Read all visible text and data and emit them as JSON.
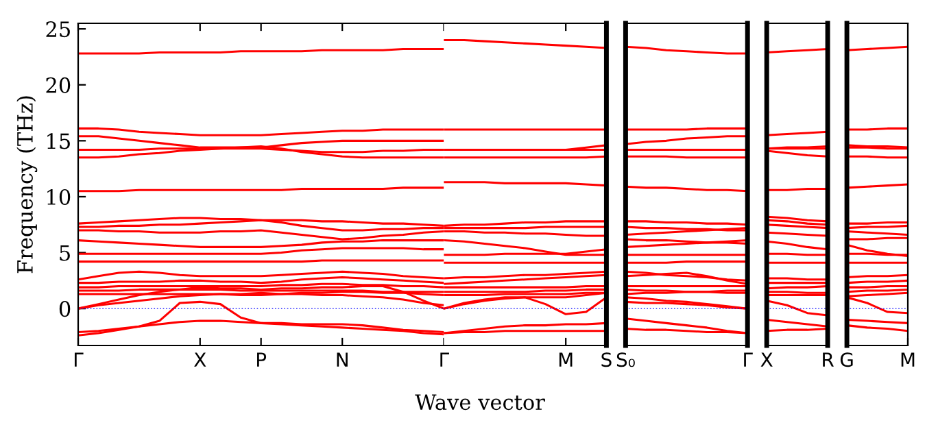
{
  "chart_data": [
    {
      "type": "line",
      "ylabel": "Frequency (THz)",
      "xlabel": "Wave vector",
      "categories": [
        "Γ",
        null,
        null,
        null,
        null,
        null,
        "X",
        null,
        null,
        "P",
        null,
        null,
        null,
        "N",
        null,
        null,
        null,
        null,
        "Γ"
      ],
      "ylim": [
        -3.3,
        25.5
      ],
      "yticks": [
        0,
        5,
        10,
        15,
        20,
        25
      ],
      "ref_lines": [
        {
          "axis": "y",
          "value": 0,
          "color": "#0000ff",
          "line_style": "dotted"
        }
      ],
      "series": [
        {
          "color": "#ff0000",
          "values": [
            22.8,
            22.8,
            22.8,
            22.8,
            22.9,
            22.9,
            22.9,
            22.9,
            23.0,
            23.0,
            23.0,
            23.0,
            23.1,
            23.1,
            23.1,
            23.1,
            23.2,
            23.2,
            23.2
          ]
        },
        {
          "color": "#ff0000",
          "values": [
            16.1,
            16.1,
            16.0,
            15.8,
            15.7,
            15.6,
            15.5,
            15.5,
            15.5,
            15.5,
            15.6,
            15.7,
            15.8,
            15.9,
            15.9,
            16.0,
            16.0,
            16.0,
            16.0
          ]
        },
        {
          "color": "#ff0000",
          "values": [
            15.4,
            15.4,
            15.2,
            15.0,
            14.8,
            14.6,
            14.4,
            14.4,
            14.4,
            14.4,
            14.6,
            14.8,
            14.9,
            15.0,
            15.0,
            15.0,
            15.0,
            15.0,
            15.0
          ]
        },
        {
          "color": "#ff0000",
          "values": [
            14.2,
            14.2,
            14.2,
            14.2,
            14.3,
            14.3,
            14.3,
            14.3,
            14.3,
            14.3,
            14.2,
            14.1,
            14.0,
            14.0,
            14.0,
            14.1,
            14.1,
            14.2,
            14.2
          ]
        },
        {
          "color": "#ff0000",
          "values": [
            13.5,
            13.5,
            13.6,
            13.8,
            13.9,
            14.1,
            14.2,
            14.3,
            14.4,
            14.5,
            14.3,
            14.0,
            13.8,
            13.6,
            13.5,
            13.5,
            13.5,
            13.5,
            13.5
          ]
        },
        {
          "color": "#ff0000",
          "values": [
            10.5,
            10.5,
            10.5,
            10.6,
            10.6,
            10.6,
            10.6,
            10.6,
            10.6,
            10.6,
            10.6,
            10.7,
            10.7,
            10.7,
            10.7,
            10.7,
            10.8,
            10.8,
            10.8
          ]
        },
        {
          "color": "#ff0000",
          "values": [
            7.6,
            7.7,
            7.8,
            7.9,
            8.0,
            8.1,
            8.1,
            8.0,
            8.0,
            7.9,
            7.9,
            7.9,
            7.8,
            7.8,
            7.7,
            7.6,
            7.6,
            7.5,
            7.4
          ]
        },
        {
          "color": "#ff0000",
          "values": [
            7.3,
            7.3,
            7.4,
            7.4,
            7.5,
            7.5,
            7.6,
            7.7,
            7.8,
            7.9,
            7.7,
            7.4,
            7.2,
            7.0,
            7.0,
            7.1,
            7.1,
            7.2,
            7.2
          ]
        },
        {
          "color": "#ff0000",
          "values": [
            7.0,
            7.0,
            6.9,
            6.9,
            6.8,
            6.8,
            6.8,
            6.9,
            6.9,
            7.0,
            6.8,
            6.6,
            6.4,
            6.2,
            6.3,
            6.5,
            6.6,
            6.8,
            6.9
          ]
        },
        {
          "color": "#ff0000",
          "values": [
            6.1,
            6.0,
            5.9,
            5.8,
            5.7,
            5.6,
            5.5,
            5.5,
            5.5,
            5.5,
            5.6,
            5.7,
            5.9,
            6.0,
            6.0,
            6.1,
            6.1,
            6.1,
            6.1
          ]
        },
        {
          "color": "#ff0000",
          "values": [
            4.9,
            4.9,
            4.9,
            4.9,
            4.9,
            4.9,
            4.9,
            4.9,
            4.9,
            4.9,
            5.0,
            5.2,
            5.3,
            5.4,
            5.4,
            5.4,
            5.4,
            5.3,
            5.3
          ]
        },
        {
          "color": "#ff0000",
          "values": [
            4.2,
            4.2,
            4.2,
            4.2,
            4.2,
            4.2,
            4.2,
            4.2,
            4.2,
            4.2,
            4.2,
            4.2,
            4.3,
            4.3,
            4.3,
            4.3,
            4.3,
            4.3,
            4.3
          ]
        },
        {
          "color": "#ff0000",
          "values": [
            2.6,
            2.9,
            3.2,
            3.3,
            3.2,
            3.0,
            2.9,
            2.9,
            2.9,
            2.9,
            3.0,
            3.1,
            3.2,
            3.3,
            3.2,
            3.1,
            2.9,
            2.8,
            2.7
          ]
        },
        {
          "color": "#ff0000",
          "values": [
            2.3,
            2.3,
            2.4,
            2.4,
            2.4,
            2.5,
            2.5,
            2.4,
            2.4,
            2.3,
            2.4,
            2.6,
            2.7,
            2.8,
            2.7,
            2.6,
            2.5,
            2.4,
            2.3
          ]
        },
        {
          "color": "#ff0000",
          "values": [
            1.9,
            1.9,
            2.0,
            2.0,
            2.0,
            2.0,
            2.0,
            2.0,
            2.0,
            2.0,
            2.1,
            2.1,
            2.2,
            2.2,
            2.1,
            2.1,
            2.0,
            2.0,
            1.9
          ]
        },
        {
          "color": "#ff0000",
          "values": [
            1.6,
            1.6,
            1.6,
            1.7,
            1.7,
            1.7,
            1.7,
            1.7,
            1.6,
            1.6,
            1.6,
            1.6,
            1.6,
            1.6,
            1.6,
            1.5,
            1.5,
            1.5,
            1.5
          ]
        },
        {
          "color": "#ff0000",
          "values": [
            1.3,
            1.3,
            1.3,
            1.3,
            1.3,
            1.3,
            1.3,
            1.3,
            1.2,
            1.2,
            1.3,
            1.4,
            1.4,
            1.5,
            1.5,
            1.4,
            1.4,
            1.3,
            1.2
          ]
        },
        {
          "color": "#ff0000",
          "values": [
            0.0,
            0.4,
            0.8,
            1.2,
            1.5,
            1.7,
            1.9,
            1.8,
            1.8,
            1.7,
            1.8,
            1.8,
            1.9,
            1.9,
            2.0,
            2.0,
            1.5,
            0.7,
            0.0
          ]
        },
        {
          "color": "#ff0000",
          "values": [
            0.0,
            0.3,
            0.5,
            0.7,
            0.9,
            1.1,
            1.2,
            1.3,
            1.3,
            1.4,
            1.3,
            1.3,
            1.2,
            1.2,
            1.1,
            1.0,
            0.8,
            0.5,
            0.3
          ]
        },
        {
          "color": "#ff0000",
          "values": [
            -2.4,
            -2.2,
            -1.9,
            -1.6,
            -1.1,
            0.5,
            0.6,
            0.4,
            -0.8,
            -1.3,
            -1.4,
            -1.5,
            -1.6,
            -1.7,
            -1.8,
            -1.9,
            -2.0,
            -2.2,
            -2.3
          ]
        },
        {
          "color": "#ff0000",
          "values": [
            -2.1,
            -2.0,
            -1.8,
            -1.6,
            -1.4,
            -1.2,
            -1.1,
            -1.1,
            -1.2,
            -1.3,
            -1.3,
            -1.4,
            -1.4,
            -1.4,
            -1.5,
            -1.7,
            -1.9,
            -2.0,
            -2.1
          ]
        }
      ]
    },
    {
      "type": "line",
      "categories": [
        null,
        null,
        null,
        null,
        null,
        null,
        "M",
        null,
        "S"
      ],
      "ylim": [
        -3.3,
        25.5
      ],
      "tick_labels": "x",
      "ref_lines": [
        {
          "axis": "y",
          "value": 0,
          "color": "#0000ff",
          "line_style": "dotted"
        }
      ],
      "series": [
        {
          "color": "#ff0000",
          "values": [
            24.0,
            24.0,
            23.9,
            23.8,
            23.7,
            23.6,
            23.5,
            23.4,
            23.3
          ]
        },
        {
          "color": "#ff0000",
          "values": [
            16.0,
            16.0,
            16.0,
            16.0,
            16.0,
            16.0,
            16.0,
            16.0,
            16.0
          ]
        },
        {
          "color": "#ff0000",
          "values": [
            14.2,
            14.2,
            14.2,
            14.2,
            14.2,
            14.2,
            14.2,
            14.4,
            14.6
          ]
        },
        {
          "color": "#ff0000",
          "values": [
            14.2,
            14.2,
            14.2,
            14.2,
            14.2,
            14.2,
            14.2,
            14.2,
            14.2
          ]
        },
        {
          "color": "#ff0000",
          "values": [
            13.5,
            13.5,
            13.5,
            13.5,
            13.5,
            13.5,
            13.5,
            13.5,
            13.6
          ]
        },
        {
          "color": "#ff0000",
          "values": [
            11.3,
            11.3,
            11.3,
            11.2,
            11.2,
            11.2,
            11.2,
            11.1,
            11.0
          ]
        },
        {
          "color": "#ff0000",
          "values": [
            7.4,
            7.5,
            7.5,
            7.6,
            7.7,
            7.7,
            7.8,
            7.8,
            7.8
          ]
        },
        {
          "color": "#ff0000",
          "values": [
            7.2,
            7.2,
            7.2,
            7.2,
            7.2,
            7.3,
            7.3,
            7.3,
            7.3
          ]
        },
        {
          "color": "#ff0000",
          "values": [
            6.9,
            6.9,
            6.8,
            6.8,
            6.7,
            6.7,
            6.6,
            6.5,
            6.5
          ]
        },
        {
          "color": "#ff0000",
          "values": [
            6.1,
            6.0,
            5.8,
            5.6,
            5.4,
            5.1,
            4.8,
            4.8,
            4.8
          ]
        },
        {
          "color": "#ff0000",
          "values": [
            4.8,
            4.8,
            4.8,
            4.9,
            4.9,
            4.9,
            4.9,
            5.1,
            5.3
          ]
        },
        {
          "color": "#ff0000",
          "values": [
            4.1,
            4.1,
            4.1,
            4.1,
            4.1,
            4.1,
            4.1,
            4.1,
            4.1
          ]
        },
        {
          "color": "#ff0000",
          "values": [
            2.7,
            2.8,
            2.8,
            2.9,
            3.0,
            3.0,
            3.1,
            3.2,
            3.3
          ]
        },
        {
          "color": "#ff0000",
          "values": [
            2.2,
            2.3,
            2.4,
            2.5,
            2.6,
            2.7,
            2.8,
            2.9,
            3.0
          ]
        },
        {
          "color": "#ff0000",
          "values": [
            1.9,
            1.9,
            1.9,
            1.9,
            1.9,
            1.9,
            1.9,
            2.0,
            2.0
          ]
        },
        {
          "color": "#ff0000",
          "values": [
            1.5,
            1.5,
            1.5,
            1.5,
            1.5,
            1.6,
            1.6,
            1.7,
            1.7
          ]
        },
        {
          "color": "#ff0000",
          "values": [
            1.2,
            1.2,
            1.2,
            1.3,
            1.3,
            1.3,
            1.3,
            1.4,
            1.4
          ]
        },
        {
          "color": "#ff0000",
          "values": [
            0.0,
            0.5,
            0.8,
            1.0,
            1.0,
            1.0,
            1.0,
            1.2,
            1.4
          ]
        },
        {
          "color": "#ff0000",
          "values": [
            0.0,
            0.4,
            0.7,
            0.9,
            1.0,
            0.4,
            -0.5,
            -0.3,
            1.0
          ]
        },
        {
          "color": "#ff0000",
          "values": [
            -2.2,
            -2.0,
            -1.8,
            -1.6,
            -1.5,
            -1.5,
            -1.4,
            -1.4,
            -1.3
          ]
        },
        {
          "color": "#ff0000",
          "values": [
            -2.2,
            -2.1,
            -2.1,
            -2.0,
            -2.0,
            -2.0,
            -2.0,
            -2.0,
            -2.0
          ]
        }
      ]
    },
    {
      "type": "line",
      "categories": [
        "S₀",
        null,
        null,
        null,
        null,
        null,
        "Γ"
      ],
      "ylim": [
        -3.3,
        25.5
      ],
      "tick_labels": "x",
      "ref_lines": [
        {
          "axis": "y",
          "value": 0,
          "color": "#0000ff",
          "line_style": "dotted"
        }
      ],
      "series": [
        {
          "color": "#ff0000",
          "values": [
            23.4,
            23.3,
            23.1,
            23.0,
            22.9,
            22.8,
            22.8
          ]
        },
        {
          "color": "#ff0000",
          "values": [
            16.0,
            16.0,
            16.0,
            16.0,
            16.1,
            16.1,
            16.1
          ]
        },
        {
          "color": "#ff0000",
          "values": [
            14.7,
            14.9,
            15.0,
            15.2,
            15.3,
            15.4,
            15.4
          ]
        },
        {
          "color": "#ff0000",
          "values": [
            14.2,
            14.2,
            14.2,
            14.2,
            14.2,
            14.2,
            14.2
          ]
        },
        {
          "color": "#ff0000",
          "values": [
            13.6,
            13.6,
            13.6,
            13.5,
            13.5,
            13.5,
            13.5
          ]
        },
        {
          "color": "#ff0000",
          "values": [
            10.9,
            10.8,
            10.8,
            10.7,
            10.6,
            10.6,
            10.5
          ]
        },
        {
          "color": "#ff0000",
          "values": [
            7.8,
            7.8,
            7.7,
            7.7,
            7.6,
            7.6,
            7.5
          ]
        },
        {
          "color": "#ff0000",
          "values": [
            7.3,
            7.2,
            7.2,
            7.1,
            7.1,
            7.0,
            7.0
          ]
        },
        {
          "color": "#ff0000",
          "values": [
            6.6,
            6.7,
            6.8,
            6.9,
            7.0,
            7.1,
            7.2
          ]
        },
        {
          "color": "#ff0000",
          "values": [
            6.2,
            6.1,
            6.1,
            6.0,
            5.9,
            5.9,
            5.8
          ]
        },
        {
          "color": "#ff0000",
          "values": [
            5.5,
            5.6,
            5.7,
            5.8,
            5.9,
            6.0,
            6.1
          ]
        },
        {
          "color": "#ff0000",
          "values": [
            4.8,
            4.8,
            4.8,
            4.8,
            4.8,
            4.8,
            4.8
          ]
        },
        {
          "color": "#ff0000",
          "values": [
            4.1,
            4.1,
            4.1,
            4.2,
            4.2,
            4.2,
            4.2
          ]
        },
        {
          "color": "#ff0000",
          "values": [
            3.3,
            3.2,
            3.0,
            2.9,
            2.8,
            2.6,
            2.5
          ]
        },
        {
          "color": "#ff0000",
          "values": [
            2.9,
            3.0,
            3.1,
            3.2,
            2.9,
            2.5,
            2.2
          ]
        },
        {
          "color": "#ff0000",
          "values": [
            2.0,
            2.0,
            2.0,
            2.0,
            2.0,
            2.0,
            2.0
          ]
        },
        {
          "color": "#ff0000",
          "values": [
            1.7,
            1.6,
            1.6,
            1.5,
            1.5,
            1.4,
            1.4
          ]
        },
        {
          "color": "#ff0000",
          "values": [
            1.3,
            1.4,
            1.4,
            1.5,
            1.5,
            1.6,
            1.6
          ]
        },
        {
          "color": "#ff0000",
          "values": [
            1.0,
            0.9,
            0.7,
            0.6,
            0.4,
            0.2,
            0.0
          ]
        },
        {
          "color": "#ff0000",
          "values": [
            0.6,
            0.5,
            0.5,
            0.4,
            0.3,
            0.1,
            0.0
          ]
        },
        {
          "color": "#ff0000",
          "values": [
            -0.9,
            -1.1,
            -1.3,
            -1.5,
            -1.7,
            -2.0,
            -2.2
          ]
        },
        {
          "color": "#ff0000",
          "values": [
            -1.8,
            -1.9,
            -1.9,
            -2.0,
            -2.1,
            -2.1,
            -2.2
          ]
        }
      ]
    },
    {
      "type": "line",
      "categories": [
        "X",
        null,
        null,
        "R"
      ],
      "ylim": [
        -3.3,
        25.5
      ],
      "tick_labels": "x",
      "ref_lines": [
        {
          "axis": "y",
          "value": 0,
          "color": "#0000ff",
          "line_style": "dotted"
        }
      ],
      "series": [
        {
          "color": "#ff0000",
          "values": [
            22.9,
            23.0,
            23.1,
            23.2
          ]
        },
        {
          "color": "#ff0000",
          "values": [
            15.5,
            15.6,
            15.7,
            15.8
          ]
        },
        {
          "color": "#ff0000",
          "values": [
            14.3,
            14.4,
            14.4,
            14.5
          ]
        },
        {
          "color": "#ff0000",
          "values": [
            14.3,
            14.3,
            14.3,
            14.3
          ]
        },
        {
          "color": "#ff0000",
          "values": [
            14.1,
            13.9,
            13.7,
            13.6
          ]
        },
        {
          "color": "#ff0000",
          "values": [
            10.6,
            10.6,
            10.7,
            10.7
          ]
        },
        {
          "color": "#ff0000",
          "values": [
            8.2,
            8.1,
            7.9,
            7.8
          ]
        },
        {
          "color": "#ff0000",
          "values": [
            7.9,
            7.8,
            7.6,
            7.5
          ]
        },
        {
          "color": "#ff0000",
          "values": [
            7.5,
            7.4,
            7.3,
            7.2
          ]
        },
        {
          "color": "#ff0000",
          "values": [
            6.8,
            6.7,
            6.6,
            6.5
          ]
        },
        {
          "color": "#ff0000",
          "values": [
            6.0,
            5.8,
            5.5,
            5.3
          ]
        },
        {
          "color": "#ff0000",
          "values": [
            4.9,
            4.9,
            4.8,
            4.8
          ]
        },
        {
          "color": "#ff0000",
          "values": [
            4.1,
            4.1,
            4.1,
            4.1
          ]
        },
        {
          "color": "#ff0000",
          "values": [
            2.7,
            2.7,
            2.6,
            2.6
          ]
        },
        {
          "color": "#ff0000",
          "values": [
            2.3,
            2.3,
            2.3,
            2.3
          ]
        },
        {
          "color": "#ff0000",
          "values": [
            1.8,
            1.9,
            1.9,
            2.0
          ]
        },
        {
          "color": "#ff0000",
          "values": [
            1.5,
            1.5,
            1.4,
            1.4
          ]
        },
        {
          "color": "#ff0000",
          "values": [
            1.2,
            1.2,
            1.2,
            1.2
          ]
        },
        {
          "color": "#ff0000",
          "values": [
            0.7,
            0.3,
            -0.4,
            -0.6
          ]
        },
        {
          "color": "#ff0000",
          "values": [
            -1.0,
            -1.2,
            -1.4,
            -1.6
          ]
        },
        {
          "color": "#ff0000",
          "values": [
            -2.0,
            -1.9,
            -1.9,
            -1.8
          ]
        }
      ]
    },
    {
      "type": "line",
      "categories": [
        "G",
        null,
        null,
        "M"
      ],
      "ylim": [
        -3.3,
        25.5
      ],
      "tick_labels": "x",
      "ref_lines": [
        {
          "axis": "y",
          "value": 0,
          "color": "#0000ff",
          "line_style": "dotted"
        }
      ],
      "series": [
        {
          "color": "#ff0000",
          "values": [
            23.1,
            23.2,
            23.3,
            23.4
          ]
        },
        {
          "color": "#ff0000",
          "values": [
            16.0,
            16.0,
            16.1,
            16.1
          ]
        },
        {
          "color": "#ff0000",
          "values": [
            14.6,
            14.5,
            14.5,
            14.4
          ]
        },
        {
          "color": "#ff0000",
          "values": [
            14.4,
            14.4,
            14.3,
            14.3
          ]
        },
        {
          "color": "#ff0000",
          "values": [
            13.6,
            13.6,
            13.5,
            13.5
          ]
        },
        {
          "color": "#ff0000",
          "values": [
            10.8,
            10.9,
            11.0,
            11.1
          ]
        },
        {
          "color": "#ff0000",
          "values": [
            7.6,
            7.6,
            7.7,
            7.7
          ]
        },
        {
          "color": "#ff0000",
          "values": [
            7.2,
            7.3,
            7.3,
            7.4
          ]
        },
        {
          "color": "#ff0000",
          "values": [
            6.9,
            6.8,
            6.7,
            6.6
          ]
        },
        {
          "color": "#ff0000",
          "values": [
            6.2,
            6.2,
            6.3,
            6.3
          ]
        },
        {
          "color": "#ff0000",
          "values": [
            5.7,
            5.2,
            4.9,
            4.7
          ]
        },
        {
          "color": "#ff0000",
          "values": [
            4.9,
            4.9,
            4.8,
            4.8
          ]
        },
        {
          "color": "#ff0000",
          "values": [
            4.1,
            4.1,
            4.1,
            4.1
          ]
        },
        {
          "color": "#ff0000",
          "values": [
            2.8,
            2.9,
            2.9,
            3.0
          ]
        },
        {
          "color": "#ff0000",
          "values": [
            2.3,
            2.4,
            2.4,
            2.5
          ]
        },
        {
          "color": "#ff0000",
          "values": [
            1.9,
            1.9,
            2.0,
            2.0
          ]
        },
        {
          "color": "#ff0000",
          "values": [
            1.5,
            1.6,
            1.6,
            1.7
          ]
        },
        {
          "color": "#ff0000",
          "values": [
            1.1,
            1.2,
            1.3,
            1.4
          ]
        },
        {
          "color": "#ff0000",
          "values": [
            1.0,
            0.5,
            -0.3,
            -0.4
          ]
        },
        {
          "color": "#ff0000",
          "values": [
            -1.0,
            -1.1,
            -1.2,
            -1.3
          ]
        },
        {
          "color": "#ff0000",
          "values": [
            -1.5,
            -1.7,
            -1.8,
            -2.0
          ]
        }
      ]
    }
  ]
}
